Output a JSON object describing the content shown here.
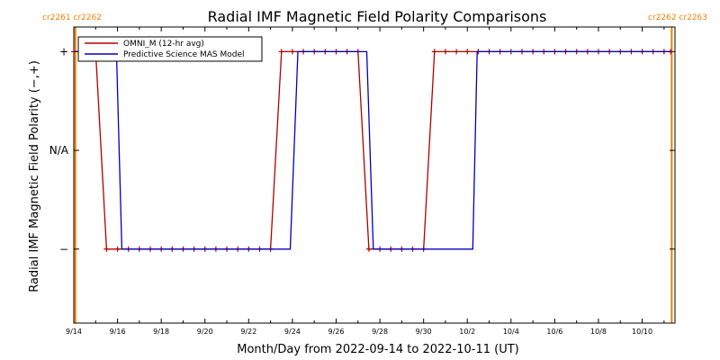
{
  "chart_data": {
    "type": "line",
    "title": "Radial IMF Magnetic Field Polarity Comparisons",
    "xlabel": "Month/Day from 2022-09-14 to 2022-10-11 (UT)",
    "ylabel": "Radial IMF Magnetic Field Polarity (−,+)",
    "x_start": "2022-09-14",
    "xlim_days": [
      0,
      27.5
    ],
    "ylim": [
      -1.75,
      1.25
    ],
    "yticks": [
      {
        "value": 1,
        "label": "+"
      },
      {
        "value": 0,
        "label": "N/A"
      },
      {
        "value": -1,
        "label": "−"
      }
    ],
    "xticks": [
      {
        "day": 0,
        "label": "9/14"
      },
      {
        "day": 2,
        "label": "9/16"
      },
      {
        "day": 4,
        "label": "9/18"
      },
      {
        "day": 6,
        "label": "9/20"
      },
      {
        "day": 8,
        "label": "9/22"
      },
      {
        "day": 10,
        "label": "9/24"
      },
      {
        "day": 12,
        "label": "9/26"
      },
      {
        "day": 14,
        "label": "9/28"
      },
      {
        "day": 16,
        "label": "9/30"
      },
      {
        "day": 18,
        "label": "10/2"
      },
      {
        "day": 20,
        "label": "10/4"
      },
      {
        "day": 22,
        "label": "10/6"
      },
      {
        "day": 24,
        "label": "10/8"
      },
      {
        "day": 26,
        "label": "10/10"
      }
    ],
    "rotation_markers": [
      {
        "day": 0.07,
        "label": "cr2261 cr2262",
        "align": "left"
      },
      {
        "day": 27.35,
        "label": "cr2262 cr2263",
        "align": "right"
      }
    ],
    "rotation_color": "#f08000",
    "legend": {
      "position": "top-left"
    },
    "series": [
      {
        "name": "OMNI_M (12-hr avg)",
        "color": "#b00000",
        "markers": true,
        "points": [
          [
            0,
            1
          ],
          [
            0.5,
            1
          ],
          [
            1,
            1
          ],
          [
            1.5,
            -1
          ],
          [
            2,
            -1
          ],
          [
            2.5,
            -1
          ],
          [
            3,
            -1
          ],
          [
            3.5,
            -1
          ],
          [
            4,
            -1
          ],
          [
            4.5,
            -1
          ],
          [
            5,
            -1
          ],
          [
            5.5,
            -1
          ],
          [
            6,
            -1
          ],
          [
            6.5,
            -1
          ],
          [
            7,
            -1
          ],
          [
            7.5,
            -1
          ],
          [
            8,
            -1
          ],
          [
            8.5,
            -1
          ],
          [
            9,
            -1
          ],
          [
            9.5,
            1
          ],
          [
            10,
            1
          ],
          [
            10.5,
            1
          ],
          [
            11,
            1
          ],
          [
            11.5,
            1
          ],
          [
            12,
            1
          ],
          [
            12.5,
            1
          ],
          [
            13,
            1
          ],
          [
            13.5,
            -1
          ],
          [
            14,
            -1
          ],
          [
            14.5,
            -1
          ],
          [
            15,
            -1
          ],
          [
            15.5,
            -1
          ],
          [
            16,
            -1
          ],
          [
            16.5,
            1
          ],
          [
            17,
            1
          ],
          [
            17.5,
            1
          ],
          [
            18,
            1
          ],
          [
            18.5,
            1
          ],
          [
            19,
            1
          ],
          [
            19.5,
            1
          ],
          [
            20,
            1
          ],
          [
            20.5,
            1
          ],
          [
            21,
            1
          ],
          [
            21.5,
            1
          ],
          [
            22,
            1
          ],
          [
            22.5,
            1
          ],
          [
            23,
            1
          ],
          [
            23.5,
            1
          ],
          [
            24,
            1
          ],
          [
            24.5,
            1
          ],
          [
            25,
            1
          ],
          [
            25.5,
            1
          ],
          [
            26,
            1
          ],
          [
            26.5,
            1
          ],
          [
            27,
            1
          ],
          [
            27.3,
            1
          ]
        ]
      },
      {
        "name": "Predictive Science MAS Model",
        "color": "#0000c0",
        "markers": false,
        "points": [
          [
            0,
            1
          ],
          [
            1.95,
            1
          ],
          [
            2.2,
            -1
          ],
          [
            9.9,
            -1
          ],
          [
            10.25,
            1
          ],
          [
            13.4,
            1
          ],
          [
            13.7,
            -1
          ],
          [
            18.25,
            -1
          ],
          [
            18.45,
            1
          ],
          [
            27.35,
            1
          ]
        ]
      }
    ]
  }
}
